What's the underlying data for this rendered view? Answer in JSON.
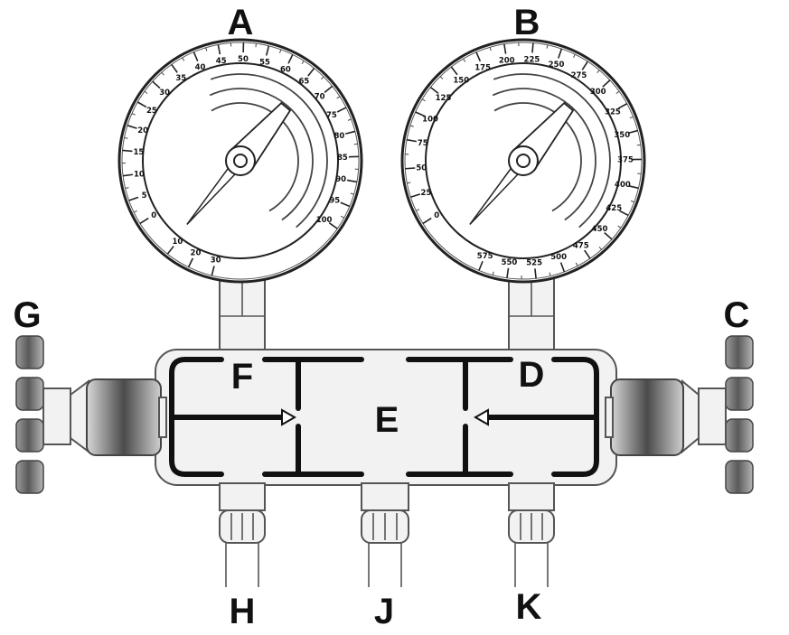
{
  "labels": {
    "A": "A",
    "B": "B",
    "C": "C",
    "D": "D",
    "E": "E",
    "F": "F",
    "G": "G",
    "H": "H",
    "J": "J",
    "K": "K"
  },
  "gauge_low": {
    "ticks": [
      "0",
      "5",
      "10",
      "15",
      "20",
      "25",
      "30",
      "35",
      "40",
      "45",
      "50",
      "55",
      "60",
      "65",
      "70",
      "75",
      "80",
      "85",
      "90",
      "95",
      "100"
    ],
    "vacuum_ticks": [
      "10",
      "20",
      "30"
    ]
  },
  "gauge_high": {
    "ticks": [
      "0",
      "25",
      "50",
      "75",
      "100",
      "125",
      "150",
      "175",
      "200",
      "225",
      "250",
      "275",
      "300",
      "325",
      "350",
      "375",
      "400",
      "425",
      "450",
      "475",
      "500",
      "525",
      "550",
      "575"
    ]
  },
  "colors": {
    "line": "#111111",
    "outline": "#555555",
    "fill": "#f2f2f2",
    "knob": "#6e6e6e"
  }
}
